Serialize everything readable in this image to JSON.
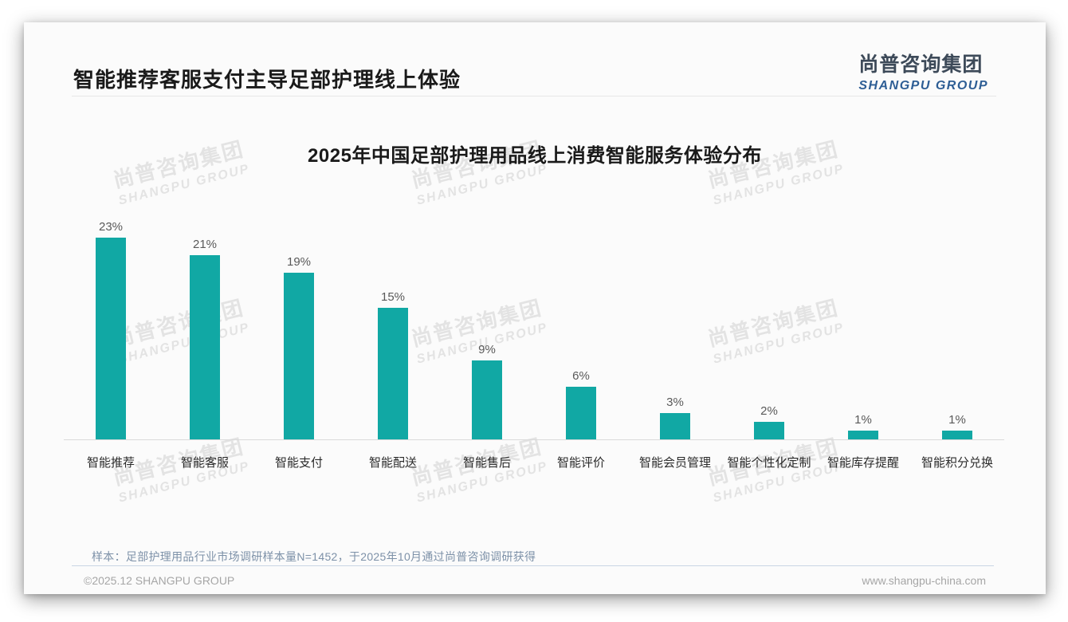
{
  "header": {
    "title": "智能推荐客服支付主导足部护理线上体验",
    "logo_cn": "尚普咨询集团",
    "logo_en": "SHANGPU GROUP"
  },
  "watermark": {
    "line1": "尚普咨询集团",
    "line2": "SHANGPU GROUP"
  },
  "chart_data": {
    "type": "bar",
    "title": "2025年中国足部护理用品线上消费智能服务体验分布",
    "categories": [
      "智能推荐",
      "智能客服",
      "智能支付",
      "智能配送",
      "智能售后",
      "智能评价",
      "智能会员管理",
      "智能个性化定制",
      "智能库存提醒",
      "智能积分兑换"
    ],
    "values": [
      23,
      21,
      19,
      15,
      9,
      6,
      3,
      2,
      1,
      1
    ],
    "value_labels": [
      "23%",
      "21%",
      "19%",
      "15%",
      "9%",
      "6%",
      "3%",
      "2%",
      "1%",
      "1%"
    ],
    "unit": "%",
    "bar_color": "#11a8a4",
    "ylim": [
      0,
      25
    ],
    "grid": false,
    "legend": false,
    "xlabel": "",
    "ylabel": ""
  },
  "footer": {
    "note": "样本：足部护理用品行业市场调研样本量N=1452，于2025年10月通过尚普咨询调研获得",
    "copyright": "©2025.12 SHANGPU GROUP",
    "website": "www.shangpu-china.com"
  }
}
